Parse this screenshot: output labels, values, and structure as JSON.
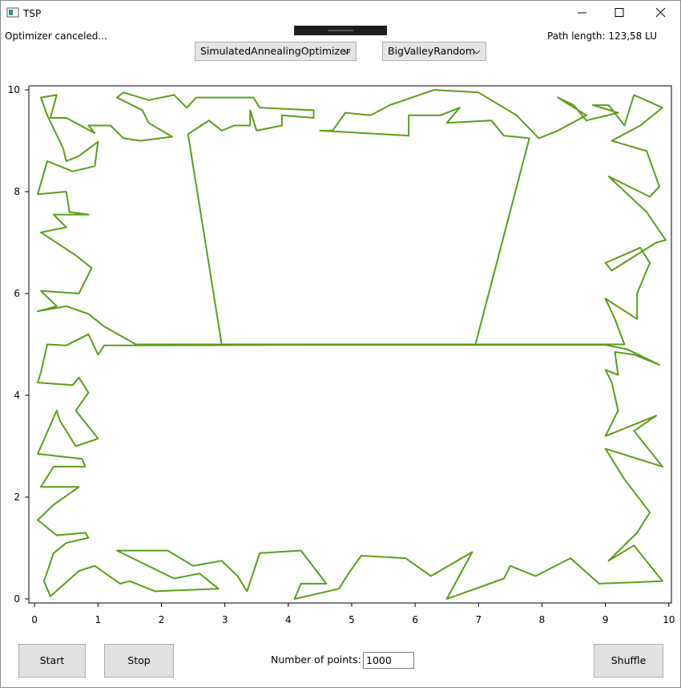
{
  "window": {
    "title": "TSP"
  },
  "status": "Optimizer canceled...",
  "optimizer": "SimulatedAnnealingOptimizer",
  "generator": "BigValleyRandom",
  "path_length": "Path length: 123,58 LU",
  "chart_data": {
    "type": "line",
    "color": "#5a9e18",
    "xlim": [
      -0.09,
      10.04
    ],
    "ylim": [
      -0.08,
      10.08
    ],
    "xticks": [
      0,
      1,
      2,
      3,
      4,
      5,
      6,
      7,
      8,
      9,
      10
    ],
    "yticks": [
      0,
      2,
      4,
      6,
      8,
      10
    ],
    "x": [
      2.95,
      2.42,
      2.75,
      2.95,
      3.15,
      3.4,
      3.4,
      3.5,
      3.9,
      3.9,
      4.4,
      4.4,
      3.55,
      3.45,
      3.05,
      2.55,
      2.4,
      2.2,
      1.8,
      1.4,
      1.3,
      1.7,
      1.8,
      2.17,
      1.67,
      1.4,
      1.2,
      0.85,
      0.95,
      0.5,
      0.25,
      0.35,
      0.1,
      0.2,
      0.45,
      0.5,
      0.7,
      1.0,
      0.95,
      0.6,
      0.2,
      0.05,
      0.5,
      0.55,
      0.85,
      0.3,
      0.5,
      0.1,
      0.65,
      0.9,
      0.7,
      0.1,
      0.35,
      0.05,
      0.5,
      0.85,
      1.1,
      1.6,
      8.3,
      9.3,
      9.15,
      9.0,
      9.5,
      9.5,
      9.7,
      9.55,
      9.0,
      9.1,
      9.8,
      9.95,
      9.65,
      9.05,
      9.7,
      9.85,
      9.65,
      9.1,
      9.55,
      9.9,
      9.45,
      9.3,
      9.05,
      8.8,
      9.2,
      8.7,
      8.5,
      8.25,
      8.7,
      8.25,
      7.95,
      7.6,
      7.0,
      6.3,
      5.6,
      5.3,
      4.9,
      4.7,
      4.5,
      5.9,
      5.9,
      6.4,
      6.7,
      6.5,
      7.2,
      7.4,
      7.8,
      6.95,
      1.1,
      1.0,
      0.85,
      0.5,
      0.2,
      0.1,
      0.05,
      0.6,
      0.7,
      0.85,
      0.65,
      1.0,
      0.65,
      0.4,
      0.35,
      0.05,
      0.75,
      0.8,
      0.3,
      0.1,
      0.7,
      0.3,
      0.05,
      0.35,
      0.8,
      0.85,
      0.5,
      0.3,
      0.15,
      0.25,
      0.7,
      0.95,
      1.35,
      1.5,
      1.9,
      2.9,
      2.6,
      2.2,
      1.3,
      2.1,
      2.5,
      2.95,
      3.2,
      3.35,
      3.55,
      4.2,
      4.6,
      4.2,
      4.1,
      4.8,
      4.95,
      5.15,
      5.85,
      6.25,
      6.9,
      6.5,
      7.4,
      7.5,
      7.9,
      8.45,
      8.9,
      9.9,
      9.45,
      9.05,
      9.5,
      9.7,
      9.3,
      9.0,
      9.9,
      9.45,
      9.8,
      9.0,
      9.2,
      9.1,
      9.0,
      9.2,
      9.15,
      9.45,
      9.85,
      9.35,
      9.0,
      2.95
    ],
    "values": [
      5.0,
      9.13,
      9.4,
      9.2,
      9.3,
      9.3,
      9.6,
      9.2,
      9.3,
      9.5,
      9.45,
      9.6,
      9.65,
      9.85,
      9.85,
      9.85,
      9.65,
      9.9,
      9.8,
      9.95,
      9.85,
      9.6,
      9.35,
      9.08,
      9.0,
      9.05,
      9.3,
      9.3,
      9.15,
      9.45,
      9.45,
      9.9,
      9.85,
      9.5,
      8.85,
      8.6,
      8.7,
      8.98,
      8.5,
      8.4,
      8.6,
      7.95,
      8.0,
      7.6,
      7.55,
      7.55,
      7.3,
      7.2,
      6.75,
      6.5,
      6.0,
      6.05,
      5.75,
      5.65,
      5.75,
      5.6,
      5.35,
      5.0,
      5.0,
      5.0,
      5.5,
      5.9,
      5.5,
      6.0,
      6.6,
      6.9,
      6.6,
      6.45,
      7.0,
      7.05,
      7.6,
      8.3,
      7.9,
      8.1,
      8.8,
      9.0,
      9.3,
      9.65,
      9.9,
      9.3,
      9.7,
      9.7,
      9.55,
      9.4,
      9.7,
      9.85,
      9.5,
      9.2,
      9.05,
      9.5,
      9.95,
      10.0,
      9.7,
      9.5,
      9.55,
      9.2,
      9.2,
      9.1,
      9.5,
      9.5,
      9.65,
      9.35,
      9.4,
      9.1,
      9.05,
      5.0,
      4.98,
      4.8,
      5.2,
      4.98,
      5.0,
      4.45,
      4.25,
      4.2,
      4.35,
      4.05,
      3.7,
      3.15,
      3.0,
      3.5,
      3.7,
      2.85,
      2.75,
      2.6,
      2.6,
      2.2,
      2.2,
      1.85,
      1.55,
      1.25,
      1.3,
      1.2,
      1.1,
      0.9,
      0.35,
      0.05,
      0.55,
      0.65,
      0.3,
      0.35,
      0.15,
      0.2,
      0.5,
      0.4,
      0.95,
      0.95,
      0.65,
      0.75,
      0.45,
      0.15,
      0.9,
      0.95,
      0.3,
      0.3,
      0.0,
      0.2,
      0.5,
      0.85,
      0.8,
      0.45,
      0.92,
      0.0,
      0.4,
      0.65,
      0.45,
      0.8,
      0.3,
      0.35,
      1.05,
      0.75,
      1.3,
      1.7,
      2.35,
      2.95,
      2.6,
      3.3,
      3.6,
      3.2,
      3.7,
      4.25,
      4.5,
      4.4,
      4.85,
      4.8,
      4.6,
      4.9,
      4.99,
      4.99
    ]
  },
  "controls": {
    "start": "Start",
    "stop": "Stop",
    "points_label": "Number of points:",
    "points_value": "1000",
    "shuffle": "Shuffle"
  }
}
